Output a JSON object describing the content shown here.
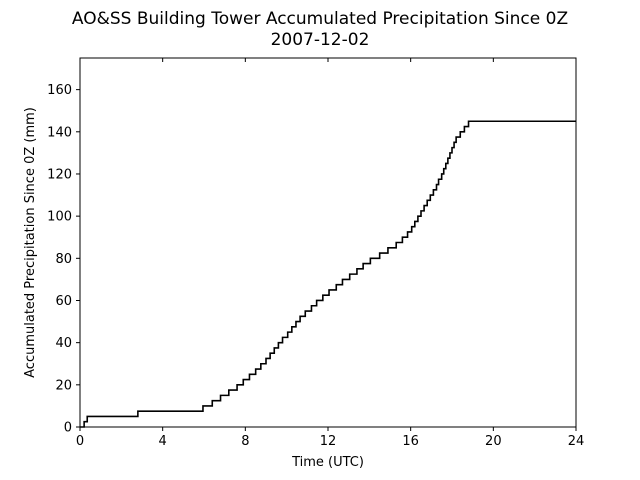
{
  "chart_data": {
    "type": "line",
    "title": "AO&SS Building Tower Accumulated Precipitation Since 0Z",
    "subtitle": "2007-12-02",
    "xlabel": "Time (UTC)",
    "ylabel": "Accumulated Precipitation Since 0Z (mm)",
    "xlim": [
      0,
      24
    ],
    "ylim": [
      0,
      175
    ],
    "xticks": [
      0,
      4,
      8,
      12,
      16,
      20,
      24
    ],
    "yticks": [
      0,
      20,
      40,
      60,
      80,
      100,
      120,
      140,
      160
    ],
    "grid": false,
    "line_color": "#000000",
    "series": [
      {
        "x": [
          0.0,
          0.2,
          0.35,
          2.8,
          5.95,
          6.4,
          6.8,
          7.2,
          7.6,
          7.9,
          8.2,
          8.5,
          8.75,
          9.0,
          9.2,
          9.4,
          9.6,
          9.8,
          10.05,
          10.25,
          10.45,
          10.65,
          10.9,
          11.2,
          11.45,
          11.75,
          12.05,
          12.4,
          12.7,
          13.05,
          13.4,
          13.7,
          14.05,
          14.5,
          14.9,
          15.3,
          15.6,
          15.85,
          16.05,
          16.2,
          16.35,
          16.5,
          16.65,
          16.8,
          16.95,
          17.1,
          17.25,
          17.35,
          17.5,
          17.6,
          17.7,
          17.8,
          17.9,
          18.0,
          18.1,
          18.2,
          18.4,
          18.6,
          18.8,
          19.05,
          19.35,
          20.3,
          24.0
        ],
        "y": [
          0,
          2.5,
          5,
          7.5,
          10,
          12.5,
          15,
          17.5,
          20,
          22.5,
          25,
          27.5,
          30,
          32.5,
          35,
          37.5,
          40,
          42.5,
          45,
          47.5,
          50,
          52.5,
          55,
          57.5,
          60,
          62.5,
          65,
          67.5,
          70,
          72.5,
          75,
          77.5,
          80,
          82.5,
          85,
          87.5,
          90,
          92.5,
          95,
          97.5,
          100,
          102.5,
          105,
          107.5,
          110,
          112.5,
          115,
          117.5,
          120,
          122.5,
          125,
          127.5,
          130,
          132.5,
          135,
          137.5,
          140,
          142.5,
          145,
          145,
          145,
          145,
          145
        ]
      }
    ]
  }
}
